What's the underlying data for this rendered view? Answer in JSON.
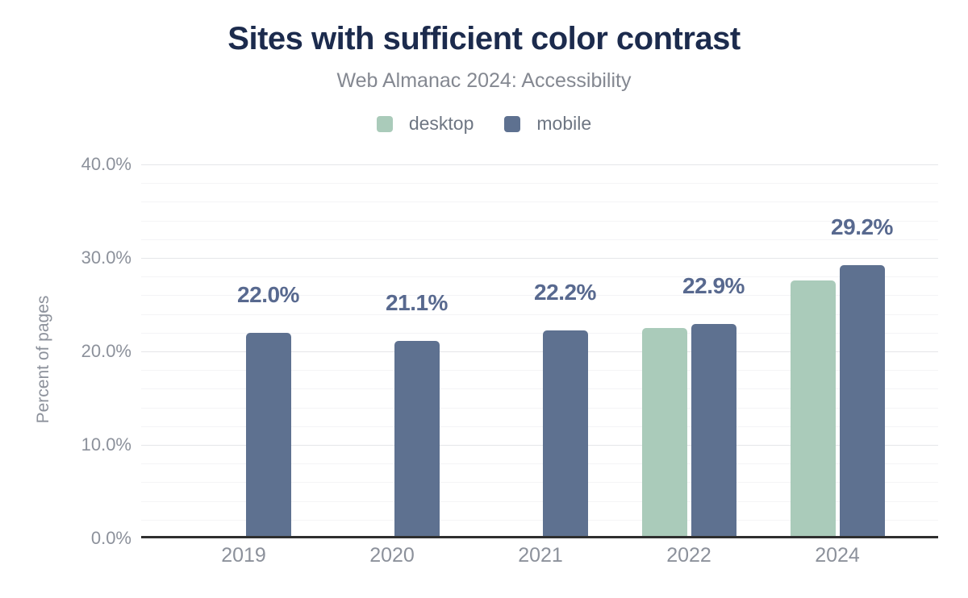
{
  "header": {
    "title": "Sites with sufficient color contrast",
    "subtitle": "Web Almanac 2024: Accessibility"
  },
  "legend": {
    "items": [
      {
        "label": "desktop",
        "color": "#aacbba"
      },
      {
        "label": "mobile",
        "color": "#5e7190"
      }
    ]
  },
  "chart_data": {
    "type": "bar",
    "title": "Sites with sufficient color contrast",
    "subtitle": "Web Almanac 2024: Accessibility",
    "categories": [
      "2019",
      "2020",
      "2021",
      "2022",
      "2024"
    ],
    "series": [
      {
        "name": "desktop",
        "color": "#aacbba",
        "values": [
          null,
          null,
          null,
          22.5,
          27.6
        ]
      },
      {
        "name": "mobile",
        "color": "#5e7190",
        "values": [
          22.0,
          21.1,
          22.2,
          22.9,
          29.2
        ]
      }
    ],
    "data_labels": [
      "22.0%",
      "21.1%",
      "22.2%",
      "22.9%",
      "29.2%"
    ],
    "data_labels_series": "mobile",
    "xlabel": "",
    "ylabel": "Percent of pages",
    "ylim": [
      0,
      40
    ],
    "yticks": [
      {
        "value": 0,
        "label": "0.0%"
      },
      {
        "value": 10,
        "label": "10.0%"
      },
      {
        "value": 20,
        "label": "20.0%"
      },
      {
        "value": 30,
        "label": "30.0%"
      },
      {
        "value": 40,
        "label": "40.0%"
      }
    ],
    "grid": {
      "major_interval": 10,
      "minor_interval": 2
    },
    "legend_position": "top"
  },
  "colors": {
    "background": "#ffffff",
    "title": "#1c2b4d",
    "subtitle": "#848891",
    "legend_text": "#6e7683",
    "tick_text": "#8c919b",
    "data_label_text": "#58698f",
    "axis_line": "#2f2f2f",
    "grid_major": "#e5e6e9",
    "grid_minor": "#f4f4f6",
    "desktop_bar": "#aacbba",
    "mobile_bar": "#5e7190"
  }
}
